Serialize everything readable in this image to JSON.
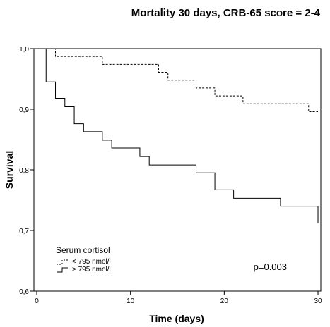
{
  "chart_data": {
    "type": "line",
    "title": "Mortality 30 days, CRB-65 score = 2-4",
    "xlabel": "Time (days)",
    "ylabel": "Survival",
    "xlim": [
      0,
      30
    ],
    "ylim": [
      0.6,
      1.0
    ],
    "x_ticks": [
      0,
      10,
      20,
      30
    ],
    "x_tick_labels": [
      "0",
      "10",
      "20",
      "30"
    ],
    "y_ticks": [
      0.6,
      0.7,
      0.8,
      0.9,
      1.0
    ],
    "y_tick_labels": [
      "0,6",
      "0,7",
      "0,8",
      "0,9",
      "1,0"
    ],
    "grid": false,
    "legend": {
      "title": "Serum cortisol",
      "placement": "bottom-left"
    },
    "annotation": "p=0.003",
    "series": [
      {
        "name": "< 795 nmol/l",
        "style": "dashed",
        "color": "#000000",
        "x": [
          0,
          2,
          7,
          13,
          14,
          17,
          19,
          22,
          29,
          30
        ],
        "y": [
          1.0,
          0.987,
          0.974,
          0.961,
          0.948,
          0.935,
          0.922,
          0.909,
          0.896,
          0.896
        ]
      },
      {
        "name": "> 795 nmol/l",
        "style": "solid",
        "color": "#000000",
        "x": [
          0,
          1,
          2,
          3,
          4,
          5,
          7,
          8,
          11,
          12,
          17,
          19,
          21,
          26,
          30,
          30
        ],
        "y": [
          1.0,
          0.945,
          0.918,
          0.904,
          0.876,
          0.863,
          0.849,
          0.836,
          0.822,
          0.808,
          0.795,
          0.767,
          0.753,
          0.74,
          0.74,
          0.712
        ]
      }
    ]
  }
}
